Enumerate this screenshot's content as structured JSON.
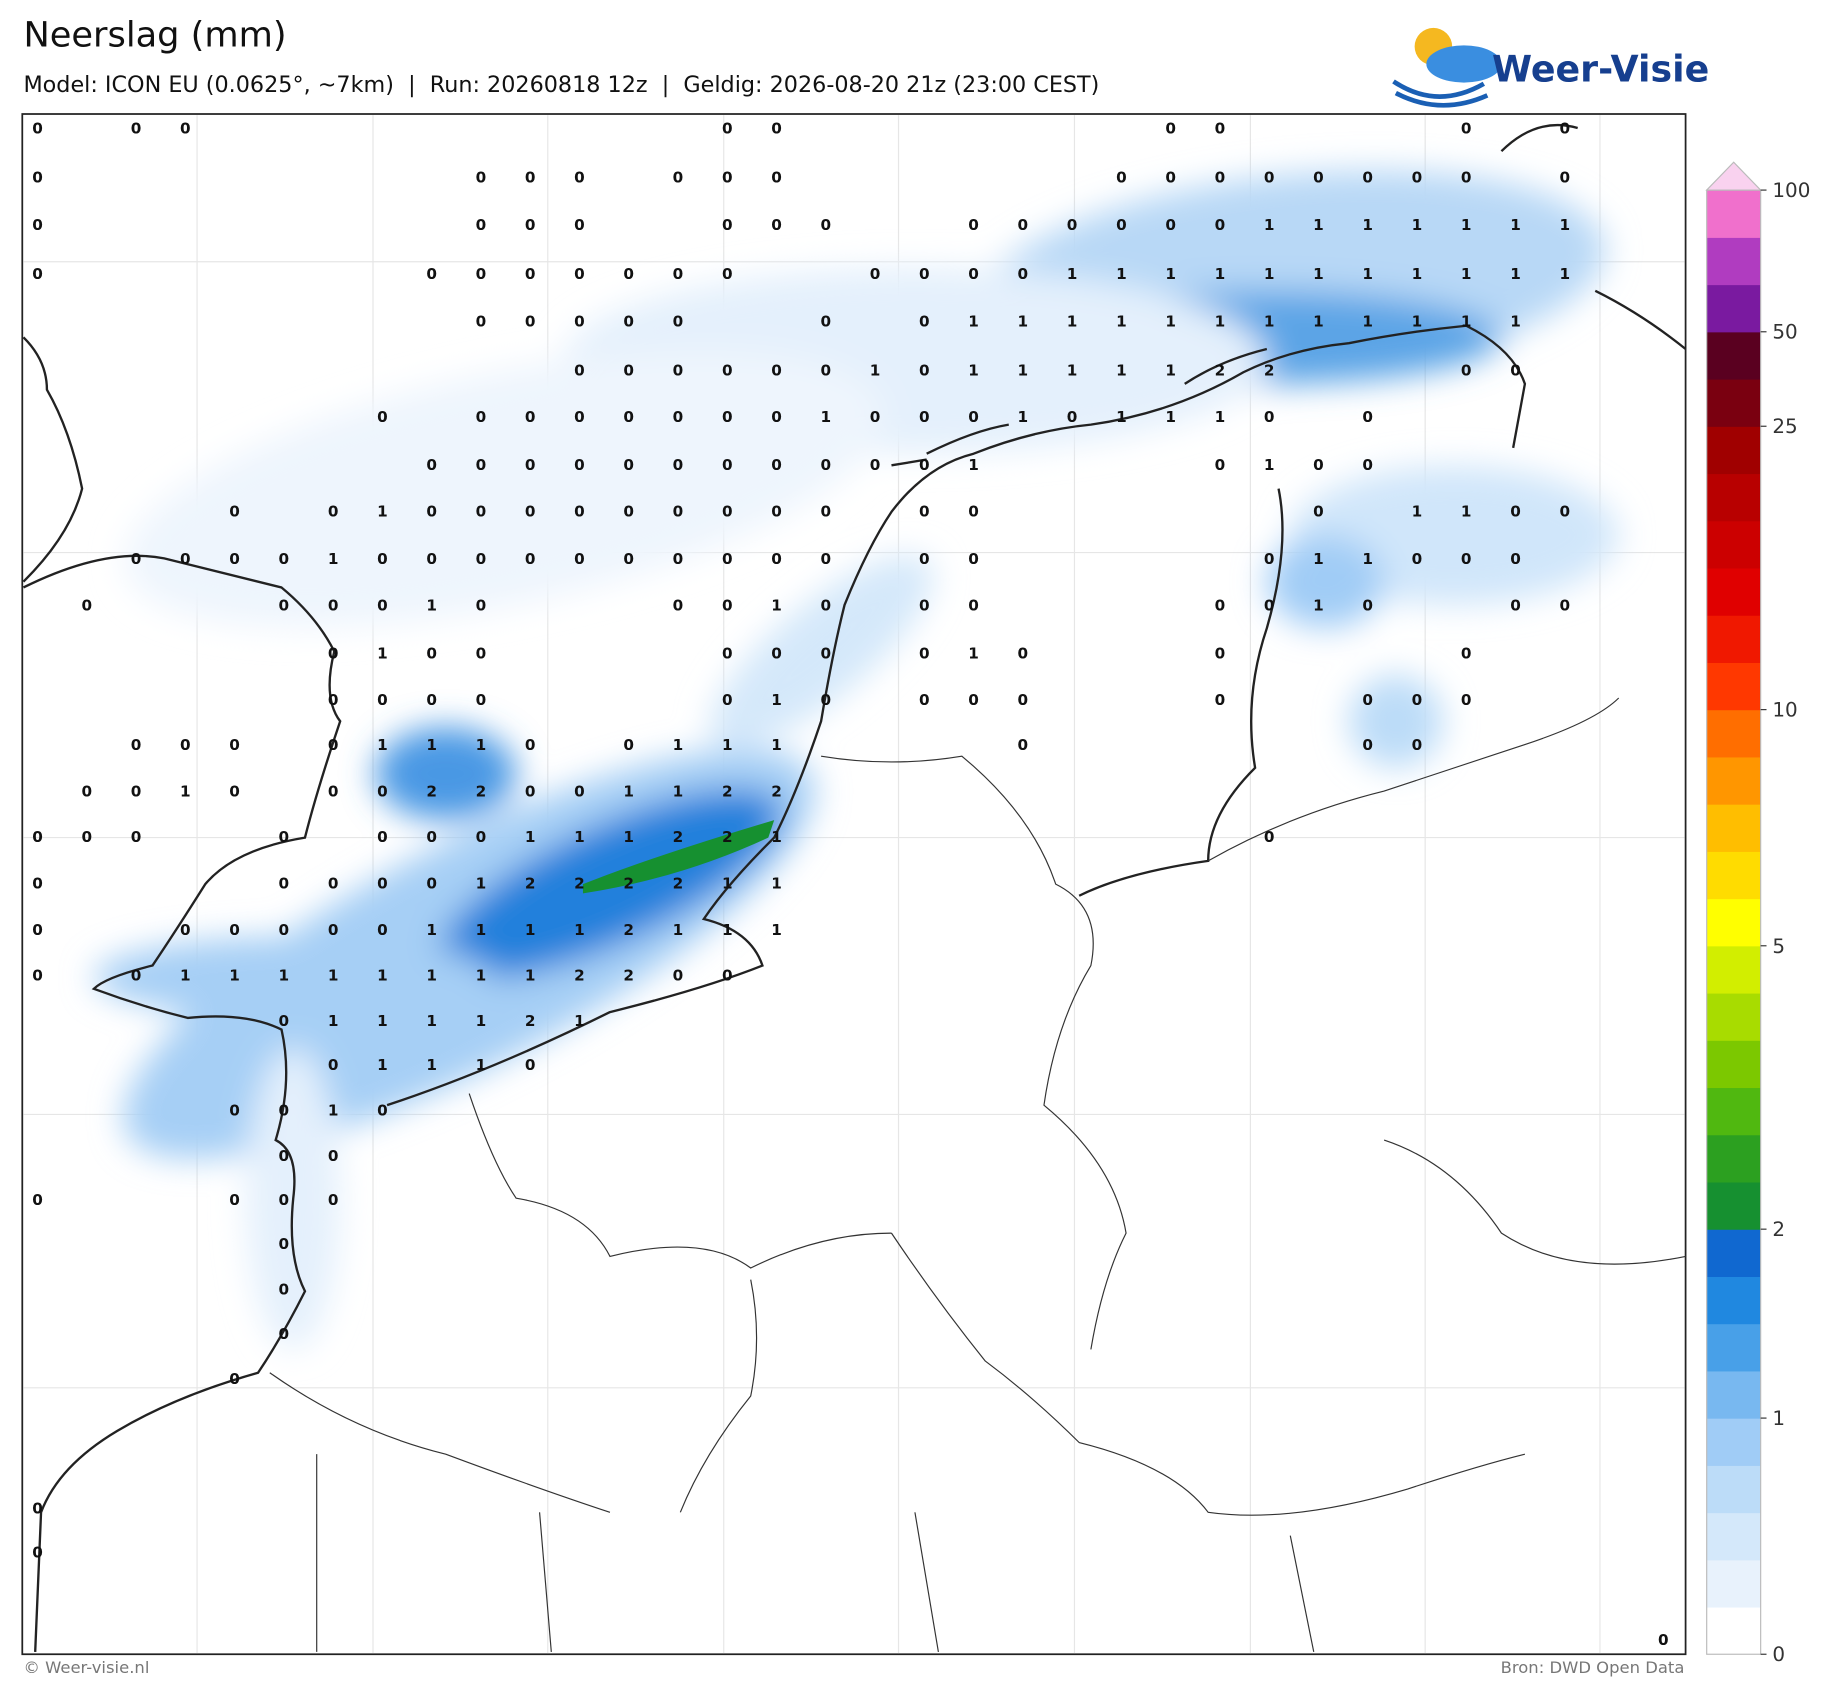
{
  "header": {
    "title": "Neerslag (mm)",
    "subtitle": "Model: ICON EU (0.0625°, ~7km)  |  Run: 20260818 12z  |  Geldig: 2026-08-20 21z (23:00 CEST)",
    "logo": "Weer-Visie"
  },
  "footer": {
    "left": "© Weer-visie.nl",
    "right": "Bron: DWD Open Data"
  },
  "colorbar": {
    "colors": [
      "#ffffff",
      "#e8f2fc",
      "#d4e8fa",
      "#bcdcf8",
      "#a0ccf6",
      "#78b8f0",
      "#48a0e8",
      "#2088e0",
      "#1068d0",
      "#169030",
      "#2ca020",
      "#50b810",
      "#7cc800",
      "#a8dc00",
      "#d2ee00",
      "#ffff00",
      "#ffdc00",
      "#ffbe00",
      "#ff9600",
      "#ff6e00",
      "#ff3800",
      "#f01800",
      "#e00000",
      "#cc0000",
      "#b80000",
      "#a00000",
      "#7a0010",
      "#5a0020",
      "#7a1aa0",
      "#b03cc0",
      "#f070cc"
    ],
    "extend_color": "#f9d2ef",
    "ticks": [
      0,
      1,
      2,
      5,
      10,
      25,
      50,
      100
    ]
  },
  "labels": [
    [
      0,
      null,
      0,
      0,
      null,
      null,
      null,
      null,
      null,
      null,
      null,
      null,
      null,
      null,
      0,
      0,
      null,
      null,
      null,
      null,
      null,
      null,
      null,
      0,
      0,
      null,
      null,
      null,
      null,
      0,
      null,
      0,
      null,
      null
    ],
    [
      0,
      null,
      null,
      null,
      null,
      null,
      null,
      null,
      null,
      0,
      0,
      0,
      null,
      0,
      0,
      0,
      null,
      null,
      null,
      null,
      null,
      null,
      0,
      0,
      0,
      0,
      0,
      0,
      0,
      0,
      null,
      0,
      null,
      null
    ],
    [
      0,
      null,
      null,
      null,
      null,
      null,
      null,
      null,
      null,
      0,
      0,
      0,
      null,
      null,
      0,
      0,
      0,
      null,
      null,
      0,
      0,
      0,
      0,
      0,
      0,
      1,
      1,
      1,
      1,
      1,
      1,
      1,
      null,
      null
    ],
    [
      0,
      null,
      null,
      null,
      null,
      null,
      null,
      null,
      0,
      0,
      0,
      0,
      0,
      0,
      0,
      null,
      null,
      0,
      0,
      0,
      0,
      1,
      1,
      1,
      1,
      1,
      1,
      1,
      1,
      1,
      1,
      1,
      null,
      null
    ],
    [
      null,
      null,
      null,
      null,
      null,
      null,
      null,
      null,
      null,
      0,
      0,
      0,
      0,
      0,
      null,
      null,
      0,
      null,
      0,
      1,
      1,
      1,
      1,
      1,
      1,
      1,
      1,
      1,
      1,
      1,
      1,
      null,
      null,
      null
    ],
    [
      null,
      null,
      null,
      null,
      null,
      null,
      null,
      null,
      null,
      null,
      null,
      0,
      0,
      0,
      0,
      0,
      0,
      1,
      0,
      1,
      1,
      1,
      1,
      1,
      2,
      2,
      null,
      null,
      null,
      0,
      0,
      null,
      null,
      null
    ],
    [
      null,
      null,
      null,
      null,
      null,
      null,
      null,
      0,
      null,
      0,
      0,
      0,
      0,
      0,
      0,
      0,
      1,
      0,
      0,
      0,
      1,
      0,
      1,
      1,
      1,
      0,
      null,
      0,
      null,
      null,
      null,
      null,
      null,
      null
    ],
    [
      null,
      null,
      null,
      null,
      null,
      null,
      null,
      null,
      0,
      0,
      0,
      0,
      0,
      0,
      0,
      0,
      0,
      0,
      0,
      1,
      null,
      null,
      null,
      null,
      0,
      1,
      0,
      0,
      null,
      null,
      null,
      null,
      null,
      null
    ],
    [
      null,
      null,
      null,
      null,
      0,
      null,
      0,
      1,
      0,
      0,
      0,
      0,
      0,
      0,
      0,
      0,
      0,
      null,
      0,
      0,
      null,
      null,
      null,
      null,
      null,
      null,
      0,
      null,
      1,
      1,
      0,
      0,
      null,
      null
    ],
    [
      null,
      null,
      0,
      0,
      0,
      0,
      1,
      0,
      0,
      0,
      0,
      0,
      0,
      0,
      0,
      0,
      0,
      null,
      0,
      0,
      null,
      null,
      null,
      null,
      null,
      0,
      1,
      1,
      0,
      0,
      0,
      null,
      null,
      null
    ],
    [
      null,
      0,
      null,
      null,
      null,
      0,
      0,
      0,
      1,
      0,
      null,
      null,
      null,
      0,
      0,
      1,
      0,
      null,
      0,
      0,
      null,
      null,
      null,
      null,
      0,
      0,
      1,
      0,
      null,
      null,
      0,
      0,
      null,
      null
    ],
    [
      null,
      null,
      null,
      null,
      null,
      null,
      0,
      1,
      0,
      0,
      null,
      null,
      null,
      null,
      0,
      0,
      0,
      null,
      0,
      1,
      0,
      null,
      null,
      null,
      0,
      null,
      null,
      null,
      null,
      0,
      null,
      null,
      null,
      null
    ],
    [
      null,
      null,
      null,
      null,
      null,
      null,
      0,
      0,
      0,
      0,
      null,
      null,
      null,
      null,
      0,
      1,
      0,
      null,
      0,
      0,
      0,
      null,
      null,
      null,
      0,
      null,
      null,
      0,
      0,
      0,
      null,
      null,
      null,
      null
    ],
    [
      null,
      null,
      0,
      0,
      0,
      null,
      0,
      1,
      1,
      1,
      0,
      null,
      0,
      1,
      1,
      1,
      null,
      null,
      null,
      null,
      0,
      null,
      null,
      null,
      null,
      null,
      null,
      0,
      0,
      null,
      null,
      null,
      null,
      null
    ],
    [
      null,
      0,
      0,
      1,
      0,
      null,
      0,
      0,
      2,
      2,
      0,
      0,
      1,
      1,
      2,
      2,
      null,
      null,
      null,
      null,
      null,
      null,
      null,
      null,
      null,
      null,
      null,
      null,
      null,
      null,
      null,
      null,
      null,
      null
    ],
    [
      0,
      0,
      0,
      null,
      null,
      0,
      null,
      0,
      0,
      0,
      1,
      1,
      1,
      2,
      2,
      1,
      null,
      null,
      null,
      null,
      null,
      null,
      null,
      null,
      null,
      0,
      null,
      null,
      null,
      null,
      null,
      null,
      null,
      null
    ],
    [
      0,
      null,
      null,
      null,
      null,
      0,
      0,
      0,
      0,
      1,
      2,
      2,
      2,
      2,
      1,
      1,
      null,
      null,
      null,
      null,
      null,
      null,
      null,
      null,
      null,
      null,
      null,
      null,
      null,
      null,
      null,
      null,
      null,
      null
    ],
    [
      0,
      null,
      null,
      0,
      0,
      0,
      0,
      0,
      1,
      1,
      1,
      1,
      2,
      1,
      1,
      1,
      null,
      null,
      null,
      null,
      null,
      null,
      null,
      null,
      null,
      null,
      null,
      null,
      null,
      null,
      null,
      null,
      null,
      null
    ],
    [
      0,
      null,
      0,
      1,
      1,
      1,
      1,
      1,
      1,
      1,
      1,
      2,
      2,
      0,
      0,
      null,
      null,
      null,
      null,
      null,
      null,
      null,
      null,
      null,
      null,
      null,
      null,
      null,
      null,
      null,
      null,
      null,
      null,
      null
    ],
    [
      null,
      null,
      null,
      null,
      null,
      0,
      1,
      1,
      1,
      1,
      2,
      1,
      null,
      null,
      null,
      null,
      null,
      null,
      null,
      null,
      null,
      null,
      null,
      null,
      null,
      null,
      null,
      null,
      null,
      null,
      null,
      null,
      null,
      null
    ],
    [
      null,
      null,
      null,
      null,
      null,
      null,
      0,
      1,
      1,
      1,
      0,
      null,
      null,
      null,
      null,
      null,
      null,
      null,
      null,
      null,
      null,
      null,
      null,
      null,
      null,
      null,
      null,
      null,
      null,
      null,
      null,
      null,
      null,
      null
    ],
    [
      null,
      null,
      null,
      null,
      0,
      0,
      1,
      0,
      null,
      null,
      null,
      null,
      null,
      null,
      null,
      null,
      null,
      null,
      null,
      null,
      null,
      null,
      null,
      null,
      null,
      null,
      null,
      null,
      null,
      null,
      null,
      null,
      null,
      null
    ],
    [
      null,
      null,
      null,
      null,
      null,
      0,
      0,
      null,
      null,
      null,
      null,
      null,
      null,
      null,
      null,
      null,
      null,
      null,
      null,
      null,
      null,
      null,
      null,
      null,
      null,
      null,
      null,
      null,
      null,
      null,
      null,
      null,
      null,
      null
    ],
    [
      0,
      null,
      null,
      null,
      0,
      0,
      0,
      null,
      null,
      null,
      null,
      null,
      null,
      null,
      null,
      null,
      null,
      null,
      null,
      null,
      null,
      null,
      null,
      null,
      null,
      null,
      null,
      null,
      null,
      null,
      null,
      null,
      null,
      null
    ],
    [
      null,
      null,
      null,
      null,
      null,
      0,
      null,
      null,
      null,
      null,
      null,
      null,
      null,
      null,
      null,
      null,
      null,
      null,
      null,
      null,
      null,
      null,
      null,
      null,
      null,
      null,
      null,
      null,
      null,
      null,
      null,
      null,
      null,
      null
    ],
    [
      null,
      null,
      null,
      null,
      null,
      0,
      null,
      null,
      null,
      null,
      null,
      null,
      null,
      null,
      null,
      null,
      null,
      null,
      null,
      null,
      null,
      null,
      null,
      null,
      null,
      null,
      null,
      null,
      null,
      null,
      null,
      null,
      null,
      null
    ],
    [
      null,
      null,
      null,
      null,
      null,
      0,
      null,
      null,
      null,
      null,
      null,
      null,
      null,
      null,
      null,
      null,
      null,
      null,
      null,
      null,
      null,
      null,
      null,
      null,
      null,
      null,
      null,
      null,
      null,
      null,
      null,
      null,
      null,
      null
    ],
    [
      null,
      null,
      null,
      null,
      0,
      null,
      null,
      null,
      null,
      null,
      null,
      null,
      null,
      null,
      null,
      null,
      null,
      null,
      null,
      null,
      null,
      null,
      null,
      null,
      null,
      null,
      null,
      null,
      null,
      null,
      null,
      null,
      null,
      null
    ],
    [
      0,
      null,
      null,
      null,
      null,
      null,
      null,
      null,
      null,
      null,
      null,
      null,
      null,
      null,
      null,
      null,
      null,
      null,
      null,
      null,
      null,
      null,
      null,
      null,
      null,
      null,
      null,
      null,
      null,
      null,
      null,
      null,
      null,
      null
    ],
    [
      0,
      null,
      null,
      null,
      null,
      null,
      null,
      null,
      null,
      null,
      null,
      null,
      null,
      null,
      null,
      null,
      null,
      null,
      null,
      null,
      null,
      null,
      null,
      null,
      null,
      null,
      null,
      null,
      null,
      null,
      null,
      null,
      null,
      null
    ],
    [
      null,
      null,
      null,
      null,
      null,
      null,
      null,
      null,
      null,
      null,
      null,
      null,
      null,
      null,
      null,
      null,
      null,
      null,
      null,
      null,
      null,
      null,
      null,
      null,
      null,
      null,
      null,
      null,
      null,
      null,
      null,
      null,
      null,
      0
    ]
  ]
}
